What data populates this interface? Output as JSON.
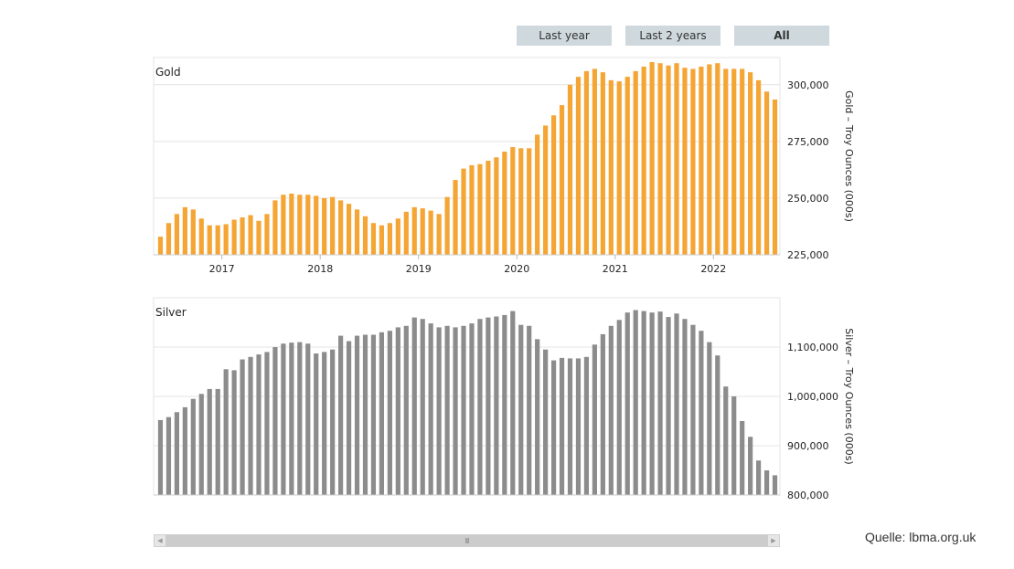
{
  "range_buttons": [
    {
      "label": "Last year",
      "active": false
    },
    {
      "label": "Last 2 years",
      "active": false
    },
    {
      "label": "All",
      "active": true
    }
  ],
  "source_text": "Quelle: lbma.org.uk",
  "scrollbar": {
    "grip": "III",
    "left_arrow": "◀",
    "right_arrow": "▶"
  },
  "colors": {
    "gold": "#f4a534",
    "silver": "#8c8c8c",
    "grid": "#e4e4e4",
    "button": "#cfd8dd"
  },
  "chart_data": [
    {
      "type": "bar",
      "title": "Gold",
      "ylabel": "Gold – Troy Ounces (000s)",
      "ylim": [
        225000,
        312000
      ],
      "yticks": [
        225000,
        250000,
        275000,
        300000
      ],
      "ytick_labels": [
        "225,000",
        "250,000",
        "275,000",
        "300,000"
      ],
      "xtick_labels": [
        "2017",
        "2018",
        "2019",
        "2020",
        "2021",
        "2022"
      ],
      "xtick_index": [
        7.5,
        19.5,
        31.5,
        43.5,
        55.5,
        67.5
      ],
      "values": [
        233000,
        239000,
        243000,
        246000,
        245000,
        241000,
        238000,
        238000,
        238500,
        240500,
        241500,
        242500,
        240000,
        243000,
        249000,
        251500,
        252000,
        251500,
        251500,
        251000,
        250000,
        250500,
        249000,
        247500,
        245000,
        242000,
        239000,
        238000,
        239000,
        241000,
        244000,
        246000,
        245500,
        244500,
        243000,
        250500,
        258000,
        263000,
        264500,
        265000,
        266500,
        268000,
        270500,
        272500,
        272000,
        272000,
        278000,
        282000,
        286500,
        291000,
        300000,
        303500,
        306000,
        307000,
        305500,
        302000,
        301500,
        303500,
        306000,
        308000,
        310000,
        309500,
        308500,
        309500,
        307500,
        307000,
        308000,
        309000,
        309500,
        307000,
        307000,
        307000,
        305500,
        302000,
        297000,
        293500
      ]
    },
    {
      "type": "bar",
      "title": "Silver",
      "ylabel": "Silver – Troy Ounces (000s)",
      "ylim": [
        800000,
        1200000
      ],
      "yticks": [
        800000,
        900000,
        1000000,
        1100000
      ],
      "ytick_labels": [
        "800,000",
        "900,000",
        "1,000,000",
        "1,100,000"
      ],
      "values": [
        952000,
        958000,
        968000,
        978000,
        995000,
        1005000,
        1015000,
        1015000,
        1055000,
        1053000,
        1075000,
        1080000,
        1085000,
        1090000,
        1100000,
        1107000,
        1109000,
        1110000,
        1107000,
        1087000,
        1090000,
        1095000,
        1123000,
        1112000,
        1123000,
        1125000,
        1125000,
        1130000,
        1133000,
        1140000,
        1143000,
        1160000,
        1157000,
        1148000,
        1140000,
        1143000,
        1140000,
        1143000,
        1148000,
        1157000,
        1160000,
        1162000,
        1165000,
        1173000,
        1145000,
        1143000,
        1116000,
        1095000,
        1073000,
        1078000,
        1077000,
        1077000,
        1080000,
        1105000,
        1126000,
        1143000,
        1155000,
        1170000,
        1175000,
        1173000,
        1170000,
        1172000,
        1161000,
        1168000,
        1157000,
        1145000,
        1133000,
        1110000,
        1083000,
        1020000,
        1000000,
        950000,
        918000,
        870000,
        850000,
        840000
      ]
    }
  ]
}
